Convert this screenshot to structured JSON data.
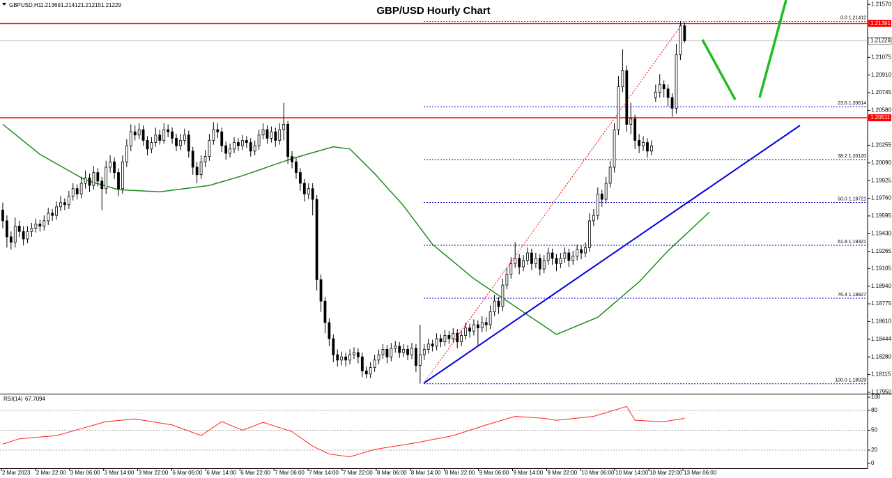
{
  "chart_data": {
    "type": "candlestick",
    "title": "GBP/USD Hourly Chart",
    "symbol": "GBPUSD,H1",
    "ohlc": [
      1.21369,
      1.21412,
      1.21215,
      1.21229
    ],
    "xlim": [
      -0.67,
      209.3
    ],
    "ylim": [
      1.1793,
      1.2161
    ],
    "yticks": [
      {
        "value": 1.2157,
        "label": "1.21570"
      },
      {
        "value": 1.21075,
        "label": "1.21075"
      },
      {
        "value": 1.2091,
        "label": "1.20910"
      },
      {
        "value": 1.20745,
        "label": "1.20745"
      },
      {
        "value": 1.2058,
        "label": "1.20580"
      },
      {
        "value": 1.20255,
        "label": "1.20255"
      },
      {
        "value": 1.2009,
        "label": "1.20090"
      },
      {
        "value": 1.19925,
        "label": "1.19925"
      },
      {
        "value": 1.1976,
        "label": "1.19760"
      },
      {
        "value": 1.19595,
        "label": "1.19595"
      },
      {
        "value": 1.1943,
        "label": "1.19430"
      },
      {
        "value": 1.19265,
        "label": "1.19265"
      },
      {
        "value": 1.19105,
        "label": "1.19105"
      },
      {
        "value": 1.1894,
        "label": "1.18940"
      },
      {
        "value": 1.18775,
        "label": "1.18775"
      },
      {
        "value": 1.1861,
        "label": "1.18610"
      },
      {
        "value": 1.18444,
        "label": "1.18444"
      },
      {
        "value": 1.1828,
        "label": "1.18280"
      },
      {
        "value": 1.18115,
        "label": "1.18115"
      },
      {
        "value": 1.1795,
        "label": "1.17950"
      }
    ],
    "x_labels": [
      "2 Mar 2023",
      "2 Mar 22:00",
      "3 Mar 06:00",
      "3 Mar 14:00",
      "3 Mar 22:00",
      "6 Mar 06:00",
      "6 Mar 14:00",
      "6 Mar 22:00",
      "7 Mar 06:00",
      "7 Mar 14:00",
      "7 Mar 22:00",
      "8 Mar 06:00",
      "8 Mar 14:00",
      "8 Mar 22:00",
      "9 Mar 06:00",
      "9 Mar 14:00",
      "9 Mar 22:00",
      "10 Mar 06:00",
      "10 Mar 14:00",
      "10 Mar 22:00",
      "13 Mar 06:00"
    ],
    "candles": [
      [
        1.1965,
        1.1972,
        1.1948,
        1.1955
      ],
      [
        1.1955,
        1.196,
        1.193,
        1.194
      ],
      [
        1.194,
        1.1945,
        1.1928,
        1.1935
      ],
      [
        1.1935,
        1.1958,
        1.193,
        1.195
      ],
      [
        1.195,
        1.1955,
        1.194,
        1.1945
      ],
      [
        1.1945,
        1.195,
        1.1932,
        1.1938
      ],
      [
        1.1938,
        1.195,
        1.1934,
        1.1945
      ],
      [
        1.1945,
        1.1953,
        1.194,
        1.1948
      ],
      [
        1.1948,
        1.1957,
        1.1944,
        1.1952
      ],
      [
        1.1952,
        1.1956,
        1.1945,
        1.195
      ],
      [
        1.195,
        1.196,
        1.1946,
        1.1955
      ],
      [
        1.1955,
        1.1967,
        1.1951,
        1.1962
      ],
      [
        1.1962,
        1.1966,
        1.1955,
        1.196
      ],
      [
        1.196,
        1.1973,
        1.1956,
        1.1968
      ],
      [
        1.1968,
        1.1978,
        1.1964,
        1.1972
      ],
      [
        1.1972,
        1.1976,
        1.1965,
        1.197
      ],
      [
        1.197,
        1.1983,
        1.1966,
        1.1978
      ],
      [
        1.1978,
        1.199,
        1.1974,
        1.1985
      ],
      [
        1.1985,
        1.1989,
        1.1975,
        1.198
      ],
      [
        1.198,
        1.1996,
        1.1976,
        1.199
      ],
      [
        1.199,
        1.2002,
        1.1985,
        1.1995
      ],
      [
        1.1995,
        1.1999,
        1.1982,
        1.1988
      ],
      [
        1.1988,
        1.2006,
        1.1984,
        1.2
      ],
      [
        1.2,
        1.2004,
        1.1987,
        1.1992
      ],
      [
        1.1992,
        1.1996,
        1.1965,
        1.1985
      ],
      [
        1.1985,
        1.2011,
        1.198,
        1.2005
      ],
      [
        1.2005,
        1.2016,
        1.2,
        1.201
      ],
      [
        1.201,
        1.2014,
        1.1994,
        1.2
      ],
      [
        1.2,
        1.2004,
        1.1978,
        1.1985
      ],
      [
        1.1985,
        1.2016,
        1.198,
        1.201
      ],
      [
        1.201,
        1.2031,
        1.2005,
        1.2025
      ],
      [
        1.2025,
        1.2045,
        1.202,
        1.2038
      ],
      [
        1.2038,
        1.2044,
        1.203,
        1.2035
      ],
      [
        1.2035,
        1.2046,
        1.2031,
        1.204
      ],
      [
        1.204,
        1.2044,
        1.2025,
        1.203
      ],
      [
        1.203,
        1.2034,
        1.2016,
        1.2022
      ],
      [
        1.2022,
        1.2033,
        1.2018,
        1.2028
      ],
      [
        1.2028,
        1.2042,
        1.2024,
        1.2035
      ],
      [
        1.2035,
        1.204,
        1.2026,
        1.203
      ],
      [
        1.203,
        1.2046,
        1.2027,
        1.204
      ],
      [
        1.204,
        1.2045,
        1.2033,
        1.2038
      ],
      [
        1.2038,
        1.2042,
        1.2027,
        1.2032
      ],
      [
        1.2032,
        1.2036,
        1.202,
        1.2025
      ],
      [
        1.2025,
        1.2036,
        1.2021,
        1.203
      ],
      [
        1.203,
        1.2041,
        1.2026,
        1.2035
      ],
      [
        1.2035,
        1.2039,
        1.2014,
        1.202
      ],
      [
        1.202,
        1.2024,
        1.1998,
        1.2005
      ],
      [
        1.2005,
        1.201,
        1.199,
        1.1998
      ],
      [
        1.1998,
        1.2016,
        1.1994,
        1.201
      ],
      [
        1.201,
        1.2021,
        1.2005,
        1.2015
      ],
      [
        1.2015,
        1.2036,
        1.2011,
        1.203
      ],
      [
        1.203,
        1.2047,
        1.2026,
        1.204
      ],
      [
        1.204,
        1.2046,
        1.2032,
        1.2038
      ],
      [
        1.2038,
        1.2042,
        1.2019,
        1.2025
      ],
      [
        1.2025,
        1.2029,
        1.2012,
        1.2018
      ],
      [
        1.2018,
        1.2027,
        1.2014,
        1.2022
      ],
      [
        1.2022,
        1.2033,
        1.2018,
        1.2028
      ],
      [
        1.2028,
        1.2032,
        1.202,
        1.2025
      ],
      [
        1.2025,
        1.2035,
        1.2021,
        1.203
      ],
      [
        1.203,
        1.2034,
        1.2023,
        1.2028
      ],
      [
        1.2028,
        1.2032,
        1.2015,
        1.202
      ],
      [
        1.202,
        1.203,
        1.2016,
        1.2025
      ],
      [
        1.2025,
        1.204,
        1.2021,
        1.2035
      ],
      [
        1.2035,
        1.2046,
        1.2031,
        1.204
      ],
      [
        1.204,
        1.2044,
        1.2027,
        1.2032
      ],
      [
        1.2032,
        1.2043,
        1.2028,
        1.2038
      ],
      [
        1.2038,
        1.2042,
        1.2024,
        1.203
      ],
      [
        1.203,
        1.2046,
        1.2026,
        1.204
      ],
      [
        1.204,
        1.2065,
        1.203,
        1.2045
      ],
      [
        1.2045,
        1.2048,
        1.2008,
        1.2015
      ],
      [
        1.2015,
        1.202,
        1.2004,
        1.201
      ],
      [
        1.201,
        1.2014,
        1.1994,
        1.2
      ],
      [
        1.2,
        1.2004,
        1.1983,
        1.199
      ],
      [
        1.199,
        1.1994,
        1.1973,
        1.198
      ],
      [
        1.198,
        1.199,
        1.1975,
        1.1985
      ],
      [
        1.1985,
        1.199,
        1.196,
        1.1975
      ],
      [
        1.1975,
        1.1979,
        1.189,
        1.19
      ],
      [
        1.19,
        1.1905,
        1.187,
        1.188
      ],
      [
        1.188,
        1.1884,
        1.185,
        1.186
      ],
      [
        1.186,
        1.1864,
        1.1838,
        1.1845
      ],
      [
        1.1845,
        1.1849,
        1.1823,
        1.183
      ],
      [
        1.183,
        1.1835,
        1.1819,
        1.1825
      ],
      [
        1.1825,
        1.1833,
        1.182,
        1.1828
      ],
      [
        1.1828,
        1.1832,
        1.1819,
        1.1825
      ],
      [
        1.1825,
        1.1835,
        1.1821,
        1.183
      ],
      [
        1.183,
        1.1837,
        1.1826,
        1.1832
      ],
      [
        1.1832,
        1.1836,
        1.1822,
        1.1828
      ],
      [
        1.1828,
        1.1832,
        1.1809,
        1.1815
      ],
      [
        1.1815,
        1.1819,
        1.1808,
        1.1812
      ],
      [
        1.1812,
        1.1823,
        1.1808,
        1.1818
      ],
      [
        1.1818,
        1.183,
        1.1814,
        1.1825
      ],
      [
        1.1825,
        1.1835,
        1.1821,
        1.183
      ],
      [
        1.183,
        1.184,
        1.1826,
        1.1835
      ],
      [
        1.1835,
        1.1839,
        1.1822,
        1.1828
      ],
      [
        1.1828,
        1.1841,
        1.1824,
        1.1836
      ],
      [
        1.1836,
        1.1843,
        1.1832,
        1.1838
      ],
      [
        1.1838,
        1.1842,
        1.1827,
        1.1832
      ],
      [
        1.1832,
        1.184,
        1.1828,
        1.1835
      ],
      [
        1.1835,
        1.1839,
        1.1825,
        1.183
      ],
      [
        1.183,
        1.1841,
        1.1826,
        1.1836
      ],
      [
        1.1836,
        1.184,
        1.1814,
        1.182
      ],
      [
        1.182,
        1.1858,
        1.1803,
        1.183
      ],
      [
        1.183,
        1.184,
        1.1825,
        1.1835
      ],
      [
        1.1835,
        1.1845,
        1.1831,
        1.184
      ],
      [
        1.184,
        1.1844,
        1.1833,
        1.1838
      ],
      [
        1.1838,
        1.185,
        1.1834,
        1.1845
      ],
      [
        1.1845,
        1.1849,
        1.1837,
        1.1842
      ],
      [
        1.1842,
        1.1853,
        1.1838,
        1.1848
      ],
      [
        1.1848,
        1.1852,
        1.184,
        1.1845
      ],
      [
        1.1845,
        1.1855,
        1.1841,
        1.185
      ],
      [
        1.185,
        1.1854,
        1.1836,
        1.1842
      ],
      [
        1.1842,
        1.1853,
        1.1838,
        1.1848
      ],
      [
        1.1848,
        1.186,
        1.1844,
        1.1855
      ],
      [
        1.1855,
        1.1859,
        1.1846,
        1.1852
      ],
      [
        1.1852,
        1.1863,
        1.1848,
        1.1858
      ],
      [
        1.1858,
        1.1862,
        1.1838,
        1.1855
      ],
      [
        1.1855,
        1.1866,
        1.1851,
        1.186
      ],
      [
        1.186,
        1.1865,
        1.1852,
        1.1858
      ],
      [
        1.1858,
        1.1876,
        1.1854,
        1.187
      ],
      [
        1.187,
        1.1886,
        1.1866,
        1.188
      ],
      [
        1.188,
        1.1884,
        1.1868,
        1.1875
      ],
      [
        1.1875,
        1.1901,
        1.1871,
        1.1895
      ],
      [
        1.1895,
        1.1911,
        1.1891,
        1.1905
      ],
      [
        1.1905,
        1.1921,
        1.1901,
        1.1915
      ],
      [
        1.1915,
        1.1935,
        1.1911,
        1.192
      ],
      [
        1.192,
        1.1924,
        1.1905,
        1.1912
      ],
      [
        1.1912,
        1.1923,
        1.1908,
        1.1918
      ],
      [
        1.1918,
        1.193,
        1.1914,
        1.1925
      ],
      [
        1.1925,
        1.1929,
        1.1909,
        1.1915
      ],
      [
        1.1915,
        1.1925,
        1.1911,
        1.192
      ],
      [
        1.192,
        1.1924,
        1.1904,
        1.191
      ],
      [
        1.191,
        1.1923,
        1.1906,
        1.1918
      ],
      [
        1.1918,
        1.193,
        1.1914,
        1.1925
      ],
      [
        1.1925,
        1.1929,
        1.1914,
        1.192
      ],
      [
        1.192,
        1.1924,
        1.1908,
        1.1915
      ],
      [
        1.1915,
        1.1925,
        1.1911,
        1.192
      ],
      [
        1.192,
        1.193,
        1.1916,
        1.1925
      ],
      [
        1.1925,
        1.1929,
        1.1912,
        1.1918
      ],
      [
        1.1918,
        1.1927,
        1.1914,
        1.1922
      ],
      [
        1.1922,
        1.1933,
        1.1918,
        1.1928
      ],
      [
        1.1928,
        1.1932,
        1.1919,
        1.1925
      ],
      [
        1.1925,
        1.1935,
        1.1921,
        1.193
      ],
      [
        1.193,
        1.1962,
        1.1926,
        1.1955
      ],
      [
        1.1955,
        1.1966,
        1.195,
        1.196
      ],
      [
        1.196,
        1.1986,
        1.1956,
        1.198
      ],
      [
        1.198,
        1.1984,
        1.1968,
        1.1975
      ],
      [
        1.1975,
        1.1996,
        1.1971,
        1.199
      ],
      [
        1.199,
        1.2011,
        1.1986,
        1.2005
      ],
      [
        1.2005,
        1.2046,
        1.2,
        1.204
      ],
      [
        1.204,
        1.209,
        1.2035,
        1.208
      ],
      [
        1.208,
        1.2115,
        1.2075,
        1.2095
      ],
      [
        1.2095,
        1.21,
        1.2038,
        1.2045
      ],
      [
        1.2045,
        1.2065,
        1.2036,
        1.205
      ],
      [
        1.205,
        1.2054,
        1.2022,
        1.203
      ],
      [
        1.203,
        1.2036,
        1.2018,
        1.2025
      ],
      [
        1.2025,
        1.2034,
        1.202,
        1.2028
      ],
      [
        1.2028,
        1.2032,
        1.2014,
        1.202
      ],
      [
        1.202,
        1.203,
        1.2016,
        1.2025
      ],
      [
        1.207,
        1.2082,
        1.2066,
        1.2075
      ],
      [
        1.2075,
        1.2092,
        1.207,
        1.2082
      ],
      [
        1.2082,
        1.2086,
        1.207,
        1.2078
      ],
      [
        1.2078,
        1.2082,
        1.2062,
        1.207
      ],
      [
        1.207,
        1.2074,
        1.2052,
        1.206
      ],
      [
        1.206,
        1.212,
        1.2055,
        1.211
      ],
      [
        1.211,
        1.2141,
        1.2105,
        1.2137
      ],
      [
        1.2137,
        1.214,
        1.2121,
        1.2123
      ]
    ],
    "moving_average": {
      "color": "#1e8c1e",
      "x": [
        0,
        9,
        20,
        28,
        38,
        50,
        58,
        70,
        80,
        84,
        90,
        97,
        104,
        114,
        124,
        134,
        144,
        154,
        161,
        171
      ],
      "values": [
        1.2045,
        1.2017,
        1.1993,
        1.1984,
        1.1982,
        1.1988,
        1.1997,
        1.2013,
        1.2024,
        1.2022,
        1.1999,
        1.1969,
        1.1933,
        1.1901,
        1.1875,
        1.1849,
        1.1865,
        1.1898,
        1.1927,
        1.1963
      ]
    },
    "price_lines": [
      {
        "value": 1.21391,
        "color": "#ff0000"
      },
      {
        "value": 1.20511,
        "color": "#ff0000"
      }
    ],
    "current_price": 1.21229,
    "fib_color": "#0000cc",
    "fib_levels": [
      {
        "label": "0.0 1.21412",
        "value": 1.21412
      },
      {
        "label": "23.6 1.20614",
        "value": 1.20614
      },
      {
        "label": "38.2 1.20120",
        "value": 1.2012
      },
      {
        "label": "50.0 1.19721",
        "value": 1.19721
      },
      {
        "label": "61.8 1.19321",
        "value": 1.19321
      },
      {
        "label": "76.4 1.18827",
        "value": 1.18827
      },
      {
        "label": "100.0 1.18029",
        "value": 1.18029
      }
    ],
    "rsi": {
      "label": "RSI(14)",
      "value": 67.7094,
      "color": "#ff2020",
      "ylim": [
        -7.4,
        104.2
      ],
      "yticks": [
        100,
        80,
        50,
        20,
        0
      ],
      "levels": [
        80,
        50,
        20
      ],
      "x": [
        0,
        4,
        13,
        25,
        32,
        41,
        48,
        53,
        58,
        63,
        70,
        75,
        79,
        84,
        90,
        100,
        109,
        117,
        124,
        131,
        134,
        143,
        151,
        153,
        160,
        165
      ],
      "values": [
        29,
        37,
        42,
        63,
        67,
        58,
        42,
        63,
        50,
        62,
        48,
        26,
        14,
        10,
        21,
        31,
        42,
        58,
        71,
        68,
        65,
        71,
        86,
        65,
        63,
        68
      ]
    }
  }
}
